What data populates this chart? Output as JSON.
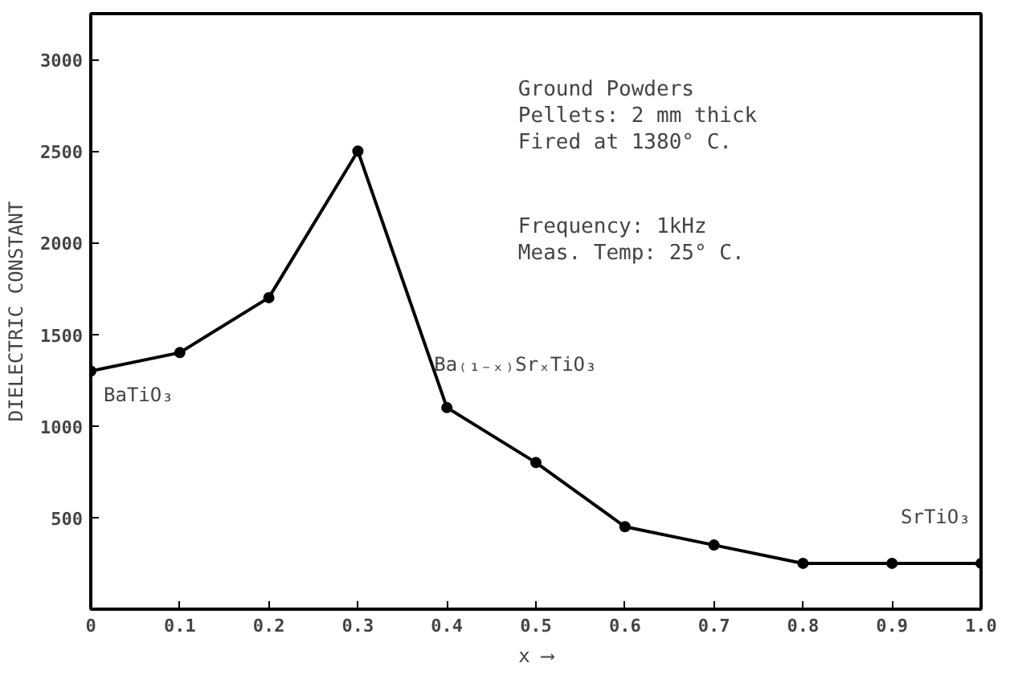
{
  "chart_data": {
    "type": "line",
    "xlabel": "x ⟶",
    "ylabel": "DIELECTRIC CONSTANT",
    "x": [
      0,
      0.1,
      0.2,
      0.3,
      0.4,
      0.5,
      0.6,
      0.7,
      0.8,
      0.9,
      1.0
    ],
    "series": [
      {
        "color": "#000000",
        "values": [
          1300,
          1400,
          1700,
          2500,
          1100,
          800,
          450,
          350,
          250,
          250,
          250
        ]
      }
    ],
    "xlim": [
      0,
      1.0
    ],
    "ylim": [
      0,
      3250
    ],
    "xticks": [
      0,
      0.1,
      0.2,
      0.3,
      0.4,
      0.5,
      0.6,
      0.7,
      0.8,
      0.9,
      {
        "value": 1,
        "label": "1.0"
      }
    ],
    "yticks": [
      500,
      1000,
      1500,
      2000,
      2500,
      3000
    ],
    "grid": false,
    "marker": "circle",
    "line_style": "solid",
    "annotations": [
      {
        "text": "BaTiO₃",
        "x": 0,
        "y": 1300
      },
      {
        "text": "Ba₍₁₋ₓ₎SrₓTiO₃",
        "x": 0.4,
        "y": 1100
      },
      {
        "text": "SrTiO₃",
        "x": 1.0,
        "y": 250
      },
      "Ground Powders\nPellets: 2 mm thick\nFired at 1380° C.",
      "Frequency: 1kHz\nMeas. Temp: 25° C."
    ]
  }
}
